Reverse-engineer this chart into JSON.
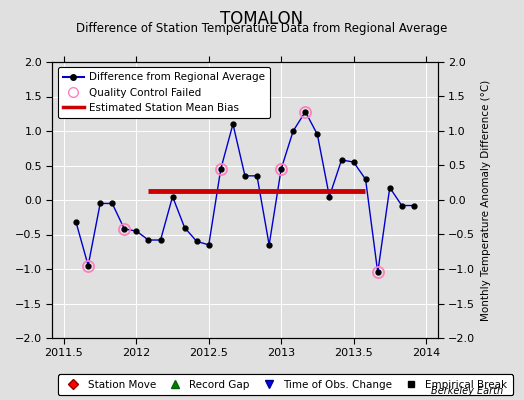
{
  "title": "TOMALON",
  "subtitle": "Difference of Station Temperature Data from Regional Average",
  "ylabel": "Monthly Temperature Anomaly Difference (°C)",
  "xlabel_ticks": [
    2011.5,
    2012,
    2012.5,
    2013,
    2013.5,
    2014
  ],
  "ylim": [
    -2,
    2
  ],
  "xlim": [
    2011.42,
    2014.08
  ],
  "bias_line_x": [
    2012.08,
    2013.58
  ],
  "bias_line_y": [
    0.13,
    0.13
  ],
  "background_color": "#e0e0e0",
  "plot_background": "#e0e0e0",
  "line_color": "#0000cc",
  "bias_color": "#cc0000",
  "watermark": "Berkeley Earth",
  "x_data": [
    2011.583,
    2011.667,
    2011.75,
    2011.833,
    2011.917,
    2012.0,
    2012.083,
    2012.167,
    2012.25,
    2012.333,
    2012.417,
    2012.5,
    2012.583,
    2012.667,
    2012.75,
    2012.833,
    2012.917,
    2013.0,
    2013.083,
    2013.167,
    2013.25,
    2013.333,
    2013.417,
    2013.5,
    2013.583,
    2013.667,
    2013.75,
    2013.833,
    2013.917
  ],
  "y_data": [
    -0.32,
    -0.95,
    -0.05,
    -0.05,
    -0.42,
    -0.45,
    -0.58,
    -0.58,
    0.05,
    -0.4,
    -0.6,
    -0.65,
    0.45,
    1.1,
    0.35,
    0.35,
    -0.65,
    0.45,
    1.0,
    1.28,
    0.95,
    0.05,
    0.58,
    0.55,
    0.3,
    -1.05,
    0.18,
    -0.08,
    -0.08
  ],
  "qc_fail_indices": [
    1,
    4,
    12,
    17,
    19,
    25
  ],
  "title_fontsize": 12,
  "subtitle_fontsize": 8.5,
  "tick_fontsize": 8,
  "legend_fontsize": 7.5
}
